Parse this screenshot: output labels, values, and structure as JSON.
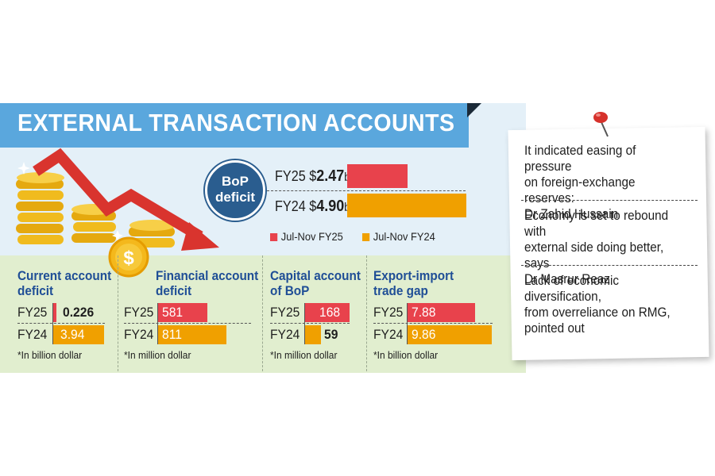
{
  "header": {
    "title": "EXTERNAL TRANSACTION ACCOUNTS"
  },
  "icons": [
    "gold-coins-icon",
    "falling-arrow-icon",
    "dollar-coin-icon",
    "push-pin-icon"
  ],
  "colors": {
    "fy25": "#e8424c",
    "fy24": "#f0a000",
    "title_band": "#5aa7dd",
    "section_title": "#1f4e96",
    "bop_circle": "#2a5d8f"
  },
  "chart_data": [
    {
      "type": "bar",
      "title": "BoP deficit",
      "title_line1": "BoP",
      "title_line2": "deficit",
      "orientation": "horizontal",
      "categories": [
        "FY25",
        "FY24"
      ],
      "values": [
        2.47,
        4.9
      ],
      "value_prefix": "$",
      "unit_suffix": "b",
      "value_labels": [
        "2.47",
        "4.90"
      ],
      "legend": {
        "position": "bottom",
        "items": [
          {
            "name": "Jul-Nov FY25",
            "color": "#e8424c"
          },
          {
            "name": "Jul-Nov FY24",
            "color": "#f0a000"
          }
        ]
      }
    },
    {
      "type": "bar",
      "title_line1": "Current account",
      "title_line2": "deficit",
      "orientation": "horizontal",
      "categories": [
        "FY25",
        "FY24"
      ],
      "values": [
        0.226,
        3.94
      ],
      "value_labels": [
        "0.226",
        "3.94"
      ],
      "note": "*In billion dollar"
    },
    {
      "type": "bar",
      "title_line1": "Financial account",
      "title_line2": "deficit",
      "orientation": "horizontal",
      "categories": [
        "FY25",
        "FY24"
      ],
      "values": [
        581,
        811
      ],
      "value_labels": [
        "581",
        "811"
      ],
      "note": "*In million dollar"
    },
    {
      "type": "bar",
      "title_line1": "Capital account",
      "title_line2": "of BoP",
      "orientation": "horizontal",
      "categories": [
        "FY25",
        "FY24"
      ],
      "values": [
        168,
        59
      ],
      "value_labels": [
        "168",
        "59"
      ],
      "note": "*In million dollar"
    },
    {
      "type": "bar",
      "title_line1": "Export-import",
      "title_line2": "trade gap",
      "orientation": "horizontal",
      "categories": [
        "FY25",
        "FY24"
      ],
      "values": [
        7.88,
        9.86
      ],
      "value_labels": [
        "7.88",
        "9.86"
      ],
      "note": "*In billion dollar"
    }
  ],
  "quotes": [
    {
      "lines": [
        "It indicated easing of pressure",
        "on foreign-exchange reserves:",
        "Dr Zahid Hussain"
      ]
    },
    {
      "lines": [
        "Economy is set to rebound with",
        "external side doing better, says",
        "Dr Masrur Reaz"
      ]
    },
    {
      "lines": [
        "Lack of economic diversification,",
        "from overreliance on RMG,",
        "pointed out"
      ]
    }
  ]
}
